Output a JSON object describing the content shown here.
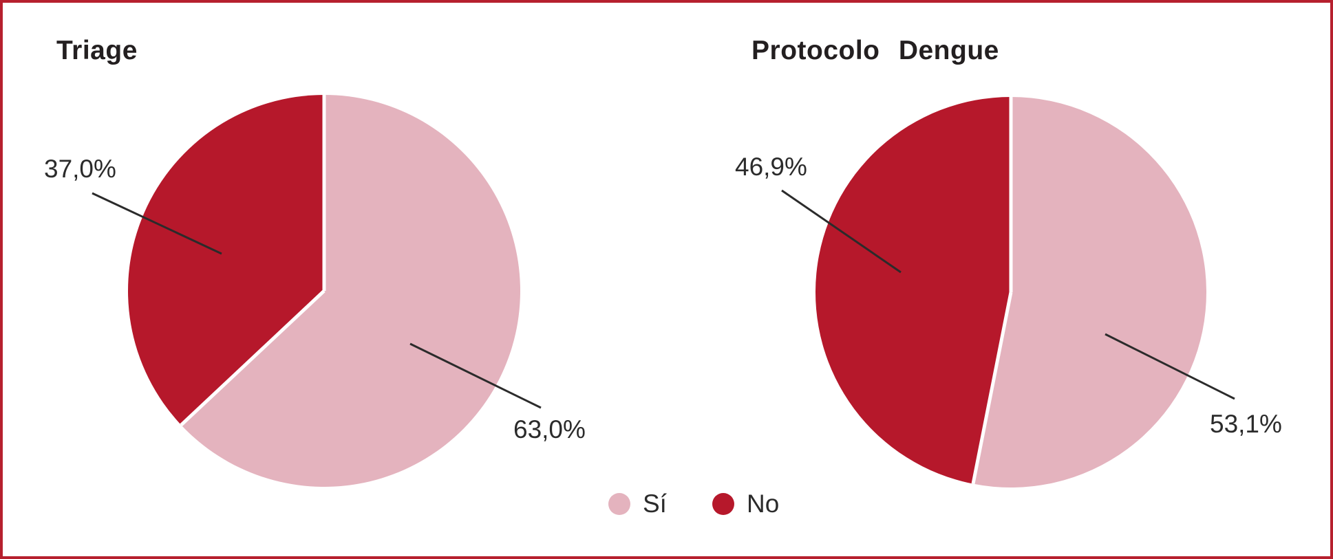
{
  "page": {
    "background": "#FFFFFF",
    "border_color": "#B6202E"
  },
  "colors": {
    "si": "#E4B3BE",
    "no": "#B6182B",
    "text": "#2B2B2B",
    "title_text": "#231F20",
    "leader_line": "#2B2B2B",
    "slice_divider": "#FFFFFF"
  },
  "legend": {
    "position": "bottom-center",
    "items": [
      {
        "label": "Sí",
        "color_key": "si"
      },
      {
        "label": "No",
        "color_key": "no"
      }
    ]
  },
  "chart_data": [
    {
      "type": "pie",
      "title": "Triage",
      "categories": [
        "Sí",
        "No"
      ],
      "values": [
        63.0,
        37.0
      ],
      "value_labels": [
        "63,0%",
        "37,0%"
      ],
      "units": "percent",
      "start_angle_deg": 0,
      "direction": "clockwise",
      "slice_colors": [
        "#E4B3BE",
        "#B6182B"
      ],
      "labels_outside": true
    },
    {
      "type": "pie",
      "title": "Protocolo Dengue",
      "categories": [
        "Sí",
        "No"
      ],
      "values": [
        53.1,
        46.9
      ],
      "value_labels": [
        "53,1%",
        "46,9%"
      ],
      "units": "percent",
      "start_angle_deg": 0,
      "direction": "clockwise",
      "slice_colors": [
        "#E4B3BE",
        "#B6182B"
      ],
      "labels_outside": true
    }
  ]
}
